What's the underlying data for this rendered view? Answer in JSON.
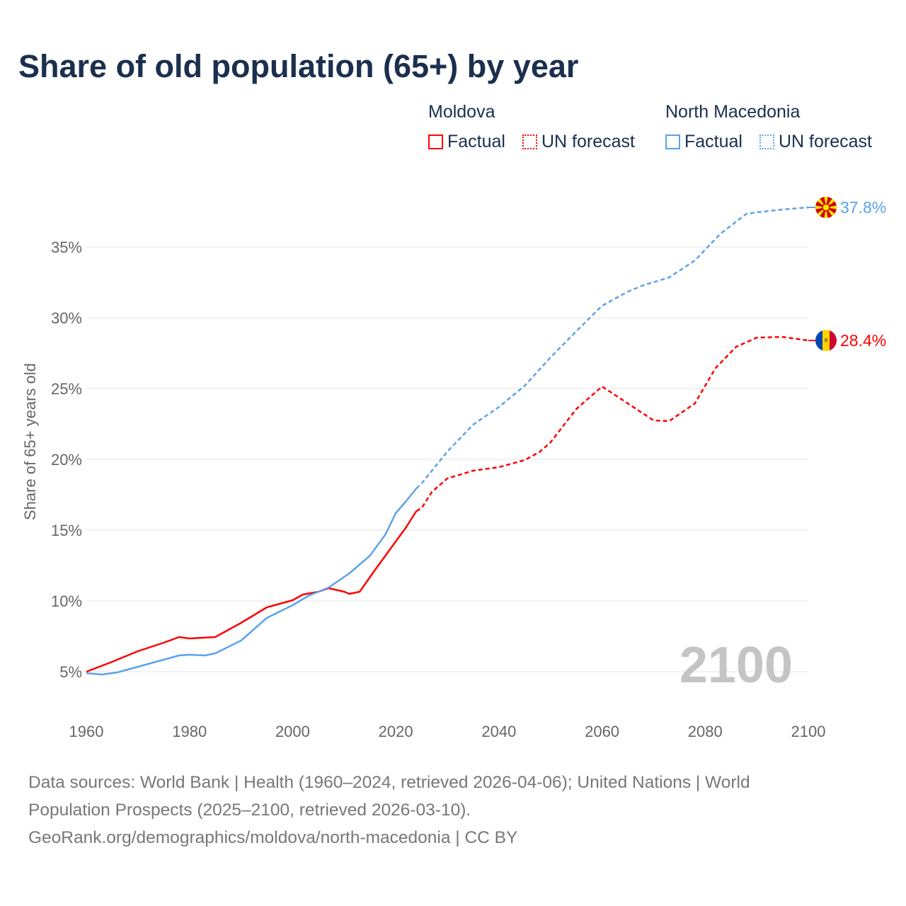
{
  "title": "Share of old population (65+) by year",
  "legend": {
    "groups": [
      {
        "name": "Moldova",
        "color": "#ff0000",
        "items": [
          "Factual",
          "UN forecast"
        ]
      },
      {
        "name": "North Macedonia",
        "color": "#5ba3ea",
        "items": [
          "Factual",
          "UN forecast"
        ]
      }
    ]
  },
  "footer": {
    "line1": "Data sources: World Bank | Health (1960–2024, retrieved 2026-04-06); United Nations | World",
    "line2": "Population Prospects (2025–2100, retrieved 2026-03-10).",
    "line3": "GeoRank.org/demographics/moldova/north-macedonia | CC BY"
  },
  "chart_data": {
    "type": "line",
    "title": "Share of old population (65+) by year",
    "xlabel": "",
    "ylabel": "Share of 65+ years old",
    "xlim": [
      1960,
      2100
    ],
    "ylim": [
      3,
      38
    ],
    "x_ticks": [
      "1960",
      "1980",
      "2000",
      "2020",
      "2040",
      "2060",
      "2080",
      "2100"
    ],
    "y_ticks": [
      {
        "value": 5,
        "label": "5%"
      },
      {
        "value": 10,
        "label": "10%"
      },
      {
        "value": 15,
        "label": "15%"
      },
      {
        "value": 20,
        "label": "20%"
      },
      {
        "value": 25,
        "label": "25%"
      },
      {
        "value": 30,
        "label": "30%"
      },
      {
        "value": 35,
        "label": "35%"
      }
    ],
    "year_watermark": "2100",
    "forecast_start": 2024,
    "series": [
      {
        "name": "Moldova",
        "color": "#ff0000",
        "end_label": "28.4%",
        "flag": "moldova-flag",
        "points": [
          [
            1960,
            5.0
          ],
          [
            1965,
            5.7
          ],
          [
            1970,
            6.45
          ],
          [
            1975,
            7.05
          ],
          [
            1978,
            7.45
          ],
          [
            1980,
            7.35
          ],
          [
            1985,
            7.45
          ],
          [
            1990,
            8.45
          ],
          [
            1995,
            9.55
          ],
          [
            2000,
            10.05
          ],
          [
            2002,
            10.45
          ],
          [
            2005,
            10.65
          ],
          [
            2007,
            10.9
          ],
          [
            2010,
            10.65
          ],
          [
            2011,
            10.5
          ],
          [
            2013,
            10.65
          ],
          [
            2016,
            12.2
          ],
          [
            2020,
            14.2
          ],
          [
            2022,
            15.2
          ],
          [
            2024,
            16.35
          ],
          [
            2025,
            16.55
          ],
          [
            2027,
            17.7
          ],
          [
            2030,
            18.65
          ],
          [
            2035,
            19.2
          ],
          [
            2040,
            19.45
          ],
          [
            2045,
            19.95
          ],
          [
            2048,
            20.55
          ],
          [
            2050,
            21.2
          ],
          [
            2055,
            23.55
          ],
          [
            2060,
            25.15
          ],
          [
            2065,
            23.95
          ],
          [
            2070,
            22.75
          ],
          [
            2073,
            22.7
          ],
          [
            2078,
            23.95
          ],
          [
            2082,
            26.45
          ],
          [
            2086,
            27.95
          ],
          [
            2090,
            28.6
          ],
          [
            2095,
            28.65
          ],
          [
            2100,
            28.4
          ]
        ]
      },
      {
        "name": "North Macedonia",
        "color": "#5ba3ea",
        "end_label": "37.8%",
        "flag": "north-macedonia-flag",
        "points": [
          [
            1960,
            4.9
          ],
          [
            1963,
            4.8
          ],
          [
            1966,
            4.95
          ],
          [
            1970,
            5.35
          ],
          [
            1975,
            5.85
          ],
          [
            1978,
            6.15
          ],
          [
            1980,
            6.2
          ],
          [
            1983,
            6.15
          ],
          [
            1985,
            6.3
          ],
          [
            1990,
            7.2
          ],
          [
            1995,
            8.8
          ],
          [
            2000,
            9.7
          ],
          [
            2003,
            10.35
          ],
          [
            2007,
            10.95
          ],
          [
            2011,
            11.95
          ],
          [
            2015,
            13.2
          ],
          [
            2018,
            14.7
          ],
          [
            2020,
            16.2
          ],
          [
            2022,
            17.05
          ],
          [
            2024,
            17.95
          ],
          [
            2025,
            18.3
          ],
          [
            2030,
            20.55
          ],
          [
            2035,
            22.45
          ],
          [
            2040,
            23.7
          ],
          [
            2045,
            25.2
          ],
          [
            2050,
            27.2
          ],
          [
            2055,
            29.05
          ],
          [
            2060,
            30.85
          ],
          [
            2065,
            31.85
          ],
          [
            2068,
            32.3
          ],
          [
            2073,
            32.85
          ],
          [
            2078,
            34.05
          ],
          [
            2083,
            35.95
          ],
          [
            2088,
            37.35
          ],
          [
            2090,
            37.45
          ],
          [
            2095,
            37.65
          ],
          [
            2100,
            37.8
          ]
        ]
      }
    ]
  }
}
